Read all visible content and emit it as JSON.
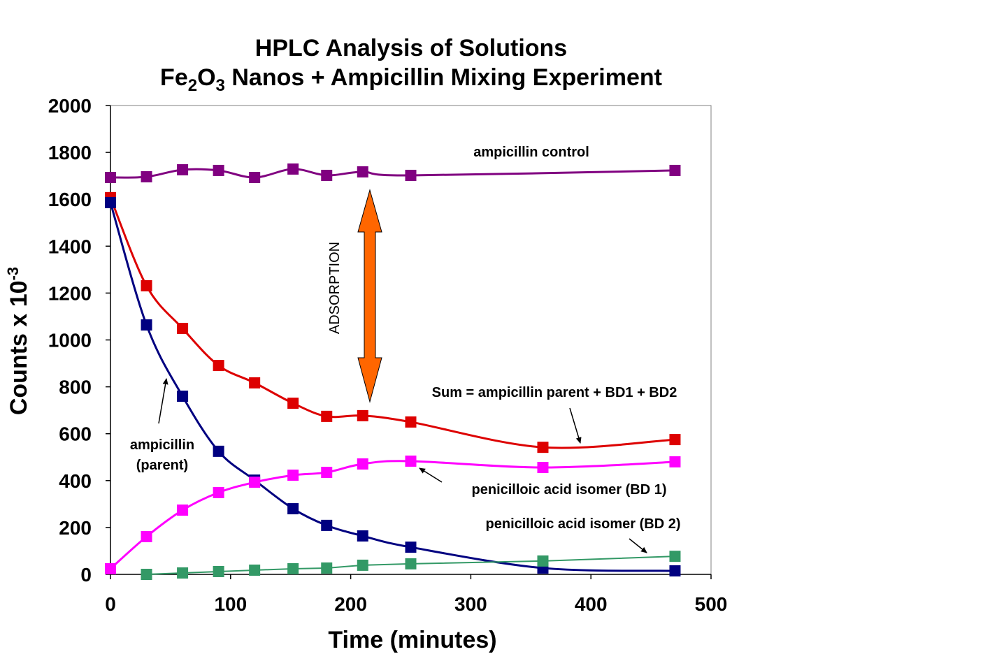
{
  "chart_data": {
    "type": "line",
    "title_line1": "HPLC Analysis of Solutions",
    "title_line2_parts": [
      "Fe",
      "2",
      "O",
      "3",
      " Nanos + Ampicillin Mixing Experiment"
    ],
    "xlabel": "Time (minutes)",
    "ylabel_base": "Counts x 10",
    "ylabel_exp": "-3",
    "xlim": [
      0,
      500
    ],
    "ylim": [
      0,
      2000
    ],
    "xticks": [
      0,
      100,
      200,
      300,
      400,
      500
    ],
    "yticks": [
      0,
      200,
      400,
      600,
      800,
      1000,
      1200,
      1400,
      1600,
      1800,
      2000
    ],
    "grid": false,
    "series": [
      {
        "name": "ampicillin control",
        "color": "#800080",
        "smooth": true,
        "x": [
          0,
          30,
          60,
          90,
          120,
          152,
          180,
          210,
          250,
          470
        ],
        "y": [
          1693,
          1696,
          1726,
          1723,
          1693,
          1729,
          1702,
          1717,
          1702,
          1723
        ]
      },
      {
        "name": "Sum = ampicillin parent + BD1 + BD2",
        "color": "#DD0000",
        "smooth": true,
        "x": [
          0,
          30,
          60,
          90,
          120,
          152,
          180,
          210,
          250,
          360,
          470
        ],
        "y": [
          1607,
          1231,
          1049,
          891,
          817,
          730,
          674,
          677,
          650,
          542,
          575
        ]
      },
      {
        "name": "ampicillin (parent)",
        "color": "#000080",
        "smooth": true,
        "x": [
          0,
          30,
          60,
          90,
          120,
          152,
          180,
          210,
          250,
          360,
          470
        ],
        "y": [
          1586,
          1064,
          760,
          525,
          402,
          280,
          209,
          164,
          116,
          27,
          15
        ]
      },
      {
        "name": "penicilloic acid isomer (BD 1)",
        "color": "#FF00FF",
        "smooth": true,
        "x": [
          0,
          30,
          60,
          90,
          120,
          152,
          180,
          210,
          250,
          360,
          470
        ],
        "y": [
          24,
          161,
          274,
          349,
          393,
          423,
          435,
          471,
          483,
          456,
          480
        ]
      },
      {
        "name": "penicilloic acid isomer (BD 2)",
        "color": "#339966",
        "smooth": false,
        "x": [
          30,
          60,
          90,
          120,
          152,
          180,
          210,
          250,
          360,
          470
        ],
        "y": [
          0,
          6,
          12,
          18,
          24,
          27,
          39,
          45,
          57,
          77
        ]
      }
    ],
    "annotations": {
      "control": "ampicillin control",
      "sum": "Sum = ampicillin parent + BD1 + BD2",
      "parent_line1": "ampicillin",
      "parent_line2": "(parent)",
      "bd1": "penicilloic acid isomer  (BD 1)",
      "bd2": "penicilloic acid isomer  (BD 2)",
      "adsorption": "ADSORPTION"
    },
    "arrow_color": "#FF6600"
  }
}
